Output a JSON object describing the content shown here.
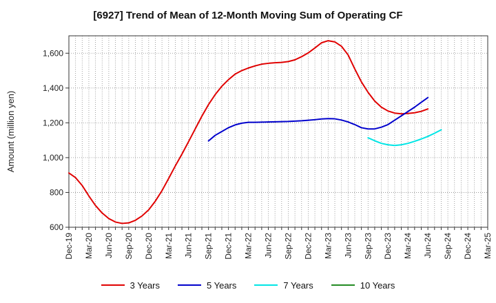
{
  "chart_data": {
    "type": "line",
    "title": "[6927]  Trend of Mean of 12-Month Moving Sum of Operating CF",
    "xlabel": "",
    "ylabel": "Amount (million yen)",
    "ylim": [
      600,
      1700
    ],
    "yticks": [
      600,
      800,
      1000,
      1200,
      1400,
      1600
    ],
    "ytick_labels": [
      "600",
      "800",
      "1,000",
      "1,200",
      "1,400",
      "1,600"
    ],
    "x_start": "Dec-19",
    "x_months": 63,
    "xticks": [
      "Dec-19",
      "Mar-20",
      "Jun-20",
      "Sep-20",
      "Dec-20",
      "Mar-21",
      "Jun-21",
      "Sep-21",
      "Dec-21",
      "Mar-22",
      "Jun-22",
      "Sep-22",
      "Dec-22",
      "Mar-23",
      "Jun-23",
      "Sep-23",
      "Dec-23",
      "Mar-24",
      "Jun-24",
      "Sep-24",
      "Dec-24",
      "Mar-25"
    ],
    "grid": true,
    "legend_position": "bottom",
    "series": [
      {
        "name": "3 Years",
        "color": "#e00000",
        "start_index": 0,
        "values": [
          912,
          885,
          840,
          780,
          725,
          682,
          650,
          630,
          622,
          625,
          640,
          665,
          700,
          750,
          810,
          880,
          952,
          1020,
          1092,
          1165,
          1238,
          1305,
          1362,
          1410,
          1448,
          1480,
          1500,
          1515,
          1527,
          1537,
          1542,
          1545,
          1547,
          1552,
          1562,
          1580,
          1602,
          1630,
          1660,
          1672,
          1665,
          1640,
          1590,
          1510,
          1435,
          1375,
          1325,
          1290,
          1268,
          1256,
          1252,
          1254,
          1258,
          1266,
          1280
        ]
      },
      {
        "name": "5 Years",
        "color": "#0000cc",
        "start_index": 21,
        "values": [
          1096,
          1128,
          1150,
          1172,
          1188,
          1198,
          1203,
          1203,
          1204,
          1205,
          1206,
          1207,
          1208,
          1210,
          1212,
          1215,
          1218,
          1222,
          1224,
          1223,
          1216,
          1205,
          1190,
          1172,
          1165,
          1165,
          1175,
          1190,
          1215,
          1240,
          1265,
          1290,
          1318,
          1345
        ]
      },
      {
        "name": "7 Years",
        "color": "#00e5e5",
        "start_index": 45,
        "values": [
          1114,
          1097,
          1082,
          1074,
          1070,
          1074,
          1082,
          1094,
          1107,
          1122,
          1140,
          1160
        ]
      },
      {
        "name": "10 Years",
        "color": "#228b22",
        "start_index": 0,
        "values": []
      }
    ]
  }
}
